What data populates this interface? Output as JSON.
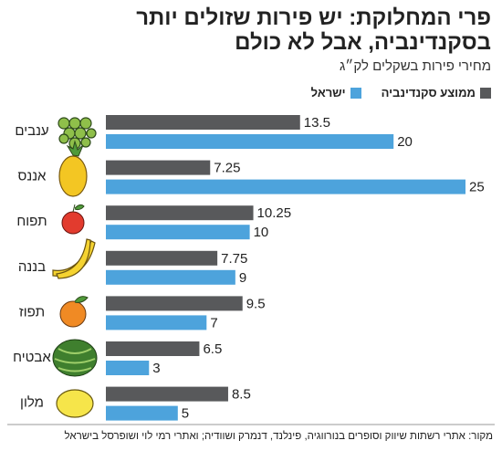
{
  "chart_data": {
    "type": "bar",
    "orientation": "horizontal",
    "title": "פרי המחלוקת: יש פירות שזולים יותר בסקנדינביה, אבל לא כולם",
    "subtitle": "מחירי פירות בשקלים לק״ג",
    "categories": [
      "ענבים",
      "אננס",
      "תפוח",
      "בננה",
      "תפוז",
      "אבטיח",
      "מלון"
    ],
    "series": [
      {
        "name": "ממוצע סקנדינביה",
        "color": "#58595b",
        "values": [
          13.5,
          7.25,
          10.25,
          7.75,
          9.5,
          6.5,
          8.5
        ]
      },
      {
        "name": "ישראל",
        "color": "#4da3dc",
        "values": [
          20,
          25,
          10,
          9,
          7,
          3,
          5
        ]
      }
    ],
    "source": "מקור: אתרי רשתות שיווק וסופרים בנורווגיה, פינלנד, דנמרק ושוודיה; ואתרי רמי לוי ושופרסל בישראל"
  }
}
